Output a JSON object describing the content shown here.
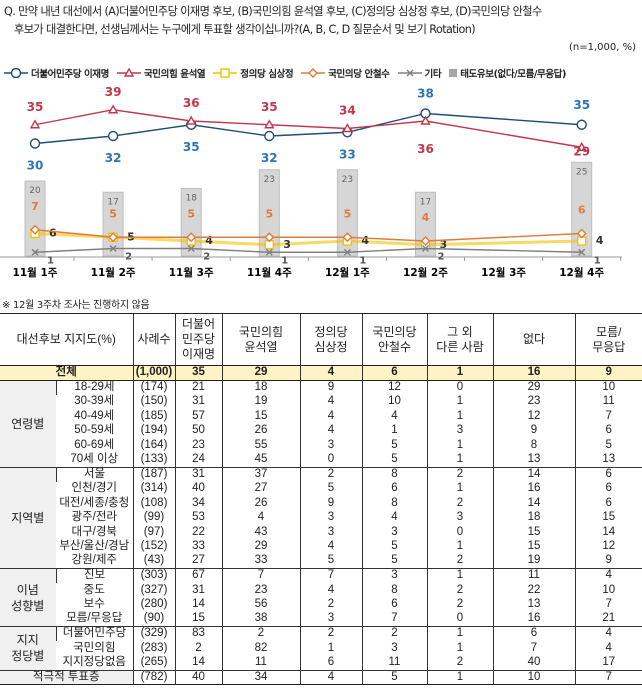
{
  "question": {
    "line1": "Q. 만약 내년 대선에서 (A)더불어민주당 이재명 후보, (B)국민의힘 윤석열 후보, (C)정의당 심상정 후보, (D)국민의당 안철수",
    "line2": "후보가 대결한다면, 선생님께서는 누구에게 투표할 생각이십니까?(A, B, C, D 질문순서 및 보기 Rotation)",
    "sample": "(n=1,000, %)"
  },
  "chart_data": {
    "type": "line",
    "categories": [
      "11월 1주",
      "11월 2주",
      "11월 3주",
      "11월 4주",
      "12월 1주",
      "12월 2주",
      "12월 3주",
      "12월 4주"
    ],
    "series": [
      {
        "name": "더불어민주당 이재명",
        "color": "#1f4e79",
        "marker": "circle",
        "values": [
          30,
          32,
          35,
          32,
          33,
          38,
          null,
          35
        ]
      },
      {
        "name": "국민의힘 윤석열",
        "color": "#c0394b",
        "marker": "triangle",
        "values": [
          35,
          39,
          36,
          35,
          34,
          36,
          null,
          29
        ]
      },
      {
        "name": "정의당 심상정",
        "color": "#f2c200",
        "marker": "square",
        "values": [
          6,
          5,
          4,
          3,
          4,
          3,
          null,
          4
        ]
      },
      {
        "name": "국민의당 안철수",
        "color": "#e07b39",
        "marker": "diamond",
        "values": [
          7,
          5,
          5,
          5,
          5,
          4,
          null,
          6
        ]
      },
      {
        "name": "기타",
        "color": "#808080",
        "marker": "x",
        "values": [
          1,
          2,
          2,
          1,
          1,
          2,
          null,
          1
        ]
      },
      {
        "name": "태도유보(없다/모름/무응답)",
        "color": "#bfbfbf",
        "type": "bar",
        "values": [
          20,
          17,
          18,
          23,
          23,
          17,
          null,
          25
        ]
      }
    ],
    "ylim": [
      0,
      45
    ]
  },
  "note": "※ 12월 3주차 조사는 진행하지 않음",
  "table": {
    "header": [
      "대선후보 지지도(%)",
      "사례수",
      "더불어\n민주당\n이재명",
      "국민의힘\n윤석열",
      "정의당\n심상정",
      "국민의당\n안철수",
      "그 외\n다른 사람",
      "없다",
      "모름/\n무응답"
    ],
    "total": {
      "label": "전체",
      "n": "(1,000)",
      "values": [
        "35",
        "29",
        "4",
        "6",
        "1",
        "16",
        "9"
      ]
    },
    "groups": [
      {
        "name": "연령별",
        "rows": [
          [
            "18-29세",
            "(174)",
            "21",
            "18",
            "9",
            "12",
            "0",
            "29",
            "10"
          ],
          [
            "30-39세",
            "(150)",
            "31",
            "19",
            "4",
            "10",
            "1",
            "23",
            "11"
          ],
          [
            "40-49세",
            "(185)",
            "57",
            "15",
            "4",
            "4",
            "1",
            "12",
            "7"
          ],
          [
            "50-59세",
            "(194)",
            "50",
            "26",
            "4",
            "1",
            "3",
            "9",
            "6"
          ],
          [
            "60-69세",
            "(164)",
            "23",
            "55",
            "3",
            "5",
            "1",
            "8",
            "5"
          ],
          [
            "70세 이상",
            "(133)",
            "24",
            "45",
            "0",
            "5",
            "1",
            "13",
            "13"
          ]
        ]
      },
      {
        "name": "지역별",
        "rows": [
          [
            "서울",
            "(187)",
            "31",
            "37",
            "2",
            "8",
            "2",
            "14",
            "6"
          ],
          [
            "인천/경기",
            "(314)",
            "40",
            "27",
            "5",
            "6",
            "1",
            "16",
            "6"
          ],
          [
            "대전/세종/충청",
            "(108)",
            "34",
            "26",
            "9",
            "8",
            "2",
            "14",
            "6"
          ],
          [
            "광주/전라",
            "(99)",
            "53",
            "4",
            "3",
            "4",
            "3",
            "18",
            "15"
          ],
          [
            "대구/경북",
            "(97)",
            "22",
            "43",
            "3",
            "3",
            "0",
            "15",
            "14"
          ],
          [
            "부산/울산/경남",
            "(152)",
            "33",
            "29",
            "4",
            "5",
            "1",
            "15",
            "12"
          ],
          [
            "강원/제주",
            "(43)",
            "27",
            "33",
            "5",
            "5",
            "2",
            "19",
            "9"
          ]
        ]
      },
      {
        "name": "이념\n성향별",
        "rows": [
          [
            "진보",
            "(303)",
            "67",
            "7",
            "7",
            "3",
            "1",
            "11",
            "4"
          ],
          [
            "중도",
            "(327)",
            "31",
            "23",
            "4",
            "8",
            "2",
            "22",
            "10"
          ],
          [
            "보수",
            "(280)",
            "14",
            "56",
            "2",
            "6",
            "2",
            "13",
            "7"
          ],
          [
            "모름/무응답",
            "(90)",
            "15",
            "38",
            "3",
            "7",
            "0",
            "16",
            "21"
          ]
        ]
      },
      {
        "name": "지지\n정당별",
        "rows": [
          [
            "더불어민주당",
            "(329)",
            "83",
            "2",
            "2",
            "2",
            "1",
            "6",
            "4"
          ],
          [
            "국민의힘",
            "(283)",
            "2",
            "82",
            "1",
            "3",
            "1",
            "7",
            "4"
          ],
          [
            "지지정당없음",
            "(265)",
            "14",
            "11",
            "6",
            "11",
            "2",
            "40",
            "17"
          ]
        ]
      }
    ],
    "footer": {
      "label": "적극적 투표층",
      "n": "(782)",
      "values": [
        "40",
        "34",
        "4",
        "5",
        "1",
        "10",
        "7"
      ]
    }
  }
}
